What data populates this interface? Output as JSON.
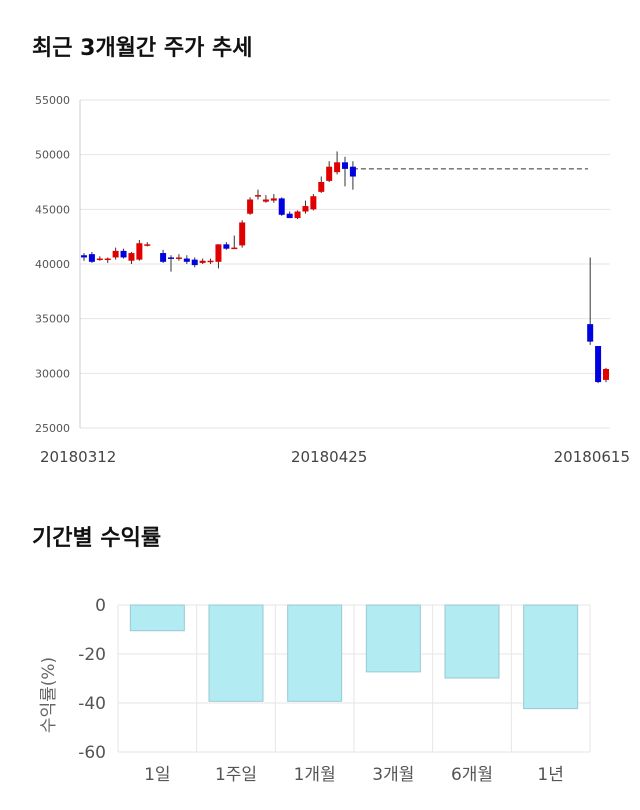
{
  "headings": {
    "price_trend": "최근 3개월간 주가 추세",
    "period_returns": "기간별 수익률"
  },
  "chart_data": [
    {
      "type": "candlestick",
      "title": "최근 3개월간 주가 추세",
      "ylim": [
        25000,
        55000
      ],
      "yticks": [
        25000,
        30000,
        35000,
        40000,
        45000,
        50000,
        55000
      ],
      "xticks": [
        {
          "label": "20180312",
          "index": 0
        },
        {
          "label": "20180425",
          "index": 31
        },
        {
          "label": "20180615",
          "index": 65
        }
      ],
      "reference_line": 48700,
      "grid": true,
      "colors": {
        "up": "#e00000",
        "down": "#0000e0",
        "reference": "#333333",
        "grid": "#e6e6e6"
      },
      "candles": [
        {
          "i": 0,
          "o": 40800,
          "h": 41000,
          "l": 40300,
          "c": 40600
        },
        {
          "i": 1,
          "o": 40900,
          "h": 41100,
          "l": 40100,
          "c": 40200
        },
        {
          "i": 2,
          "o": 40500,
          "h": 40700,
          "l": 40300,
          "c": 40500
        },
        {
          "i": 3,
          "o": 40500,
          "h": 40600,
          "l": 40100,
          "c": 40500
        },
        {
          "i": 4,
          "o": 40600,
          "h": 41500,
          "l": 40400,
          "c": 41200
        },
        {
          "i": 5,
          "o": 41200,
          "h": 41400,
          "l": 40500,
          "c": 40600
        },
        {
          "i": 6,
          "o": 40300,
          "h": 41100,
          "l": 40000,
          "c": 41000
        },
        {
          "i": 7,
          "o": 40400,
          "h": 42200,
          "l": 40300,
          "c": 41900
        },
        {
          "i": 8,
          "o": 41800,
          "h": 42000,
          "l": 41600,
          "c": 41800
        },
        {
          "i": 10,
          "o": 41000,
          "h": 41300,
          "l": 40100,
          "c": 40200
        },
        {
          "i": 11,
          "o": 40600,
          "h": 40800,
          "l": 39300,
          "c": 40500
        },
        {
          "i": 12,
          "o": 40600,
          "h": 40900,
          "l": 40300,
          "c": 40600
        },
        {
          "i": 13,
          "o": 40500,
          "h": 40800,
          "l": 40000,
          "c": 40200
        },
        {
          "i": 14,
          "o": 40400,
          "h": 40600,
          "l": 39700,
          "c": 39900
        },
        {
          "i": 15,
          "o": 40100,
          "h": 40500,
          "l": 40000,
          "c": 40300
        },
        {
          "i": 16,
          "o": 40200,
          "h": 40500,
          "l": 40000,
          "c": 40300
        },
        {
          "i": 17,
          "o": 40200,
          "h": 41800,
          "l": 39600,
          "c": 41800
        },
        {
          "i": 18,
          "o": 41800,
          "h": 42000,
          "l": 41300,
          "c": 41400
        },
        {
          "i": 19,
          "o": 41500,
          "h": 42600,
          "l": 41400,
          "c": 41500
        },
        {
          "i": 20,
          "o": 41700,
          "h": 44000,
          "l": 41500,
          "c": 43800
        },
        {
          "i": 21,
          "o": 44600,
          "h": 46100,
          "l": 44500,
          "c": 45900
        },
        {
          "i": 22,
          "o": 46300,
          "h": 46800,
          "l": 45900,
          "c": 46300
        },
        {
          "i": 23,
          "o": 45700,
          "h": 46300,
          "l": 45600,
          "c": 45900
        },
        {
          "i": 24,
          "o": 45800,
          "h": 46400,
          "l": 45600,
          "c": 46000
        },
        {
          "i": 25,
          "o": 46000,
          "h": 46100,
          "l": 44400,
          "c": 44500
        },
        {
          "i": 26,
          "o": 44600,
          "h": 44800,
          "l": 44200,
          "c": 44200
        },
        {
          "i": 27,
          "o": 44200,
          "h": 44900,
          "l": 44100,
          "c": 44800
        },
        {
          "i": 28,
          "o": 44800,
          "h": 45800,
          "l": 44600,
          "c": 45300
        },
        {
          "i": 29,
          "o": 45000,
          "h": 46400,
          "l": 44900,
          "c": 46200
        },
        {
          "i": 30,
          "o": 46600,
          "h": 48000,
          "l": 46500,
          "c": 47500
        },
        {
          "i": 31,
          "o": 47600,
          "h": 49400,
          "l": 47500,
          "c": 48900
        },
        {
          "i": 32,
          "o": 48400,
          "h": 50300,
          "l": 48200,
          "c": 49300
        },
        {
          "i": 33,
          "o": 49300,
          "h": 49800,
          "l": 47100,
          "c": 48700
        },
        {
          "i": 34,
          "o": 48900,
          "h": 49400,
          "l": 46800,
          "c": 48000
        },
        {
          "i": 64,
          "o": 34500,
          "h": 40600,
          "l": 32600,
          "c": 32900
        },
        {
          "i": 65,
          "o": 32500,
          "h": 32500,
          "l": 29100,
          "c": 29200
        },
        {
          "i": 66,
          "o": 29400,
          "h": 30500,
          "l": 29200,
          "c": 30400
        }
      ]
    },
    {
      "type": "bar",
      "title": "기간별 수익률",
      "ylabel": "수익률(%)",
      "ylim": [
        -60,
        0
      ],
      "yticks": [
        0,
        -20,
        -40,
        -60
      ],
      "categories": [
        "1일",
        "1주일",
        "1개월",
        "3개월",
        "6개월",
        "1년"
      ],
      "values": [
        -10.5,
        -39.3,
        -39.3,
        -27.3,
        -29.8,
        -42.3
      ],
      "grid": true,
      "colors": {
        "bar_fill": "#b3ebf3",
        "bar_stroke": "#99c9d1",
        "grid": "#e6e6e6",
        "axis_text": "#555555"
      }
    }
  ]
}
